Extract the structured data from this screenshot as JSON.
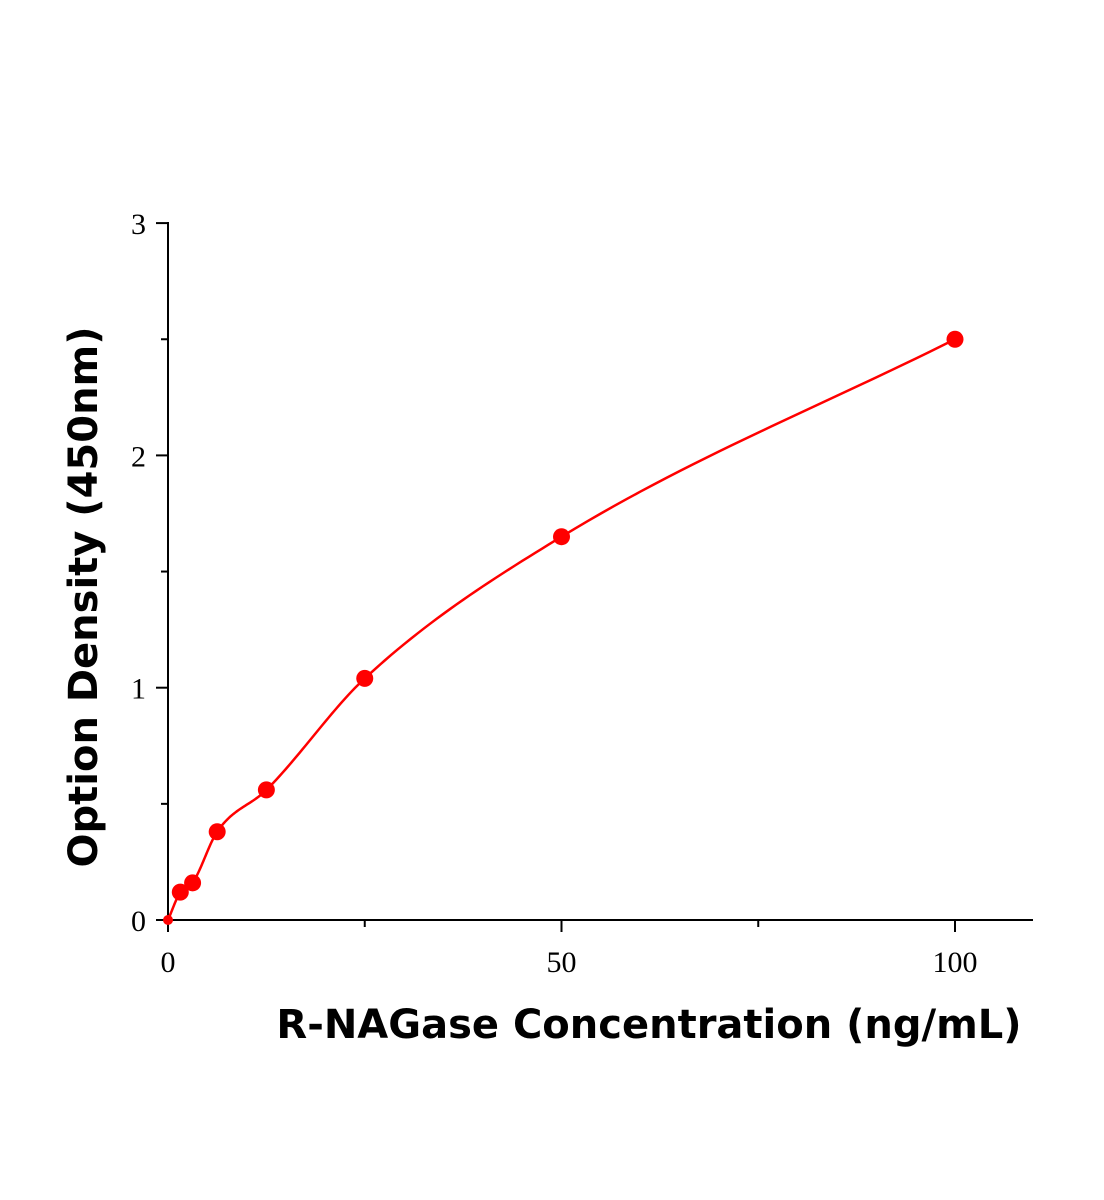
{
  "chart_data": {
    "type": "scatter",
    "title": "",
    "xlabel": "R-NAGase Concentration (ng/mL)",
    "ylabel": "Option Density (450nm)",
    "xlim": [
      0,
      110
    ],
    "ylim": [
      0,
      3
    ],
    "x_ticks": [
      0,
      50,
      100
    ],
    "x_tick_labels": [
      "0",
      "50",
      "100"
    ],
    "x_minor_ticks": [
      25,
      75
    ],
    "y_ticks": [
      0,
      1,
      2,
      3
    ],
    "y_tick_labels": [
      "0",
      "1",
      "2",
      "3"
    ],
    "y_minor_ticks": [
      0.5,
      1.5,
      2.5
    ],
    "grid": false,
    "series": [
      {
        "x": [
          0,
          1.5625,
          3.125,
          6.25,
          12.5,
          25,
          50,
          100
        ],
        "y": [
          0.0,
          0.12,
          0.16,
          0.38,
          0.56,
          1.04,
          1.65,
          2.5
        ],
        "color": "#ff0000",
        "marker": "circle",
        "fit_line": true
      }
    ]
  }
}
